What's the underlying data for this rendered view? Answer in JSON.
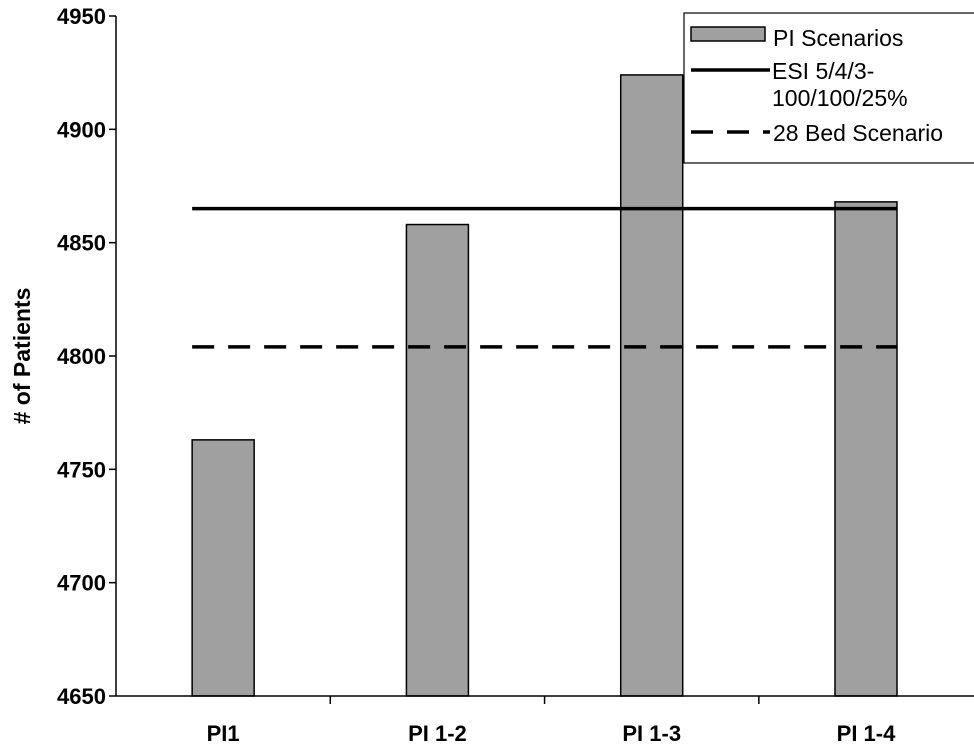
{
  "chart_data": {
    "type": "bar",
    "title": "",
    "xlabel": "",
    "ylabel": "# of Patients",
    "ylim": [
      4650,
      4950
    ],
    "yticks": [
      4650,
      4700,
      4750,
      4800,
      4850,
      4900,
      4950
    ],
    "categories": [
      "PI1",
      "PI 1-2",
      "PI 1-3",
      "PI 1-4"
    ],
    "series": [
      {
        "name": "PI Scenarios",
        "kind": "bar",
        "values": [
          4763,
          4858,
          4924,
          4868
        ]
      }
    ],
    "reference_lines": [
      {
        "name_lines": [
          "ESI 5/4/3-",
          "100/100/25%"
        ],
        "value": 4865,
        "style": "solid"
      },
      {
        "name_lines": [
          "28 Bed Scenario"
        ],
        "value": 4804,
        "style": "dashed"
      }
    ],
    "colors": {
      "bar_fill": "#a0a0a0",
      "bar_stroke": "#000000",
      "line": "#000000"
    },
    "grid": false,
    "legend_position": "top-right"
  }
}
